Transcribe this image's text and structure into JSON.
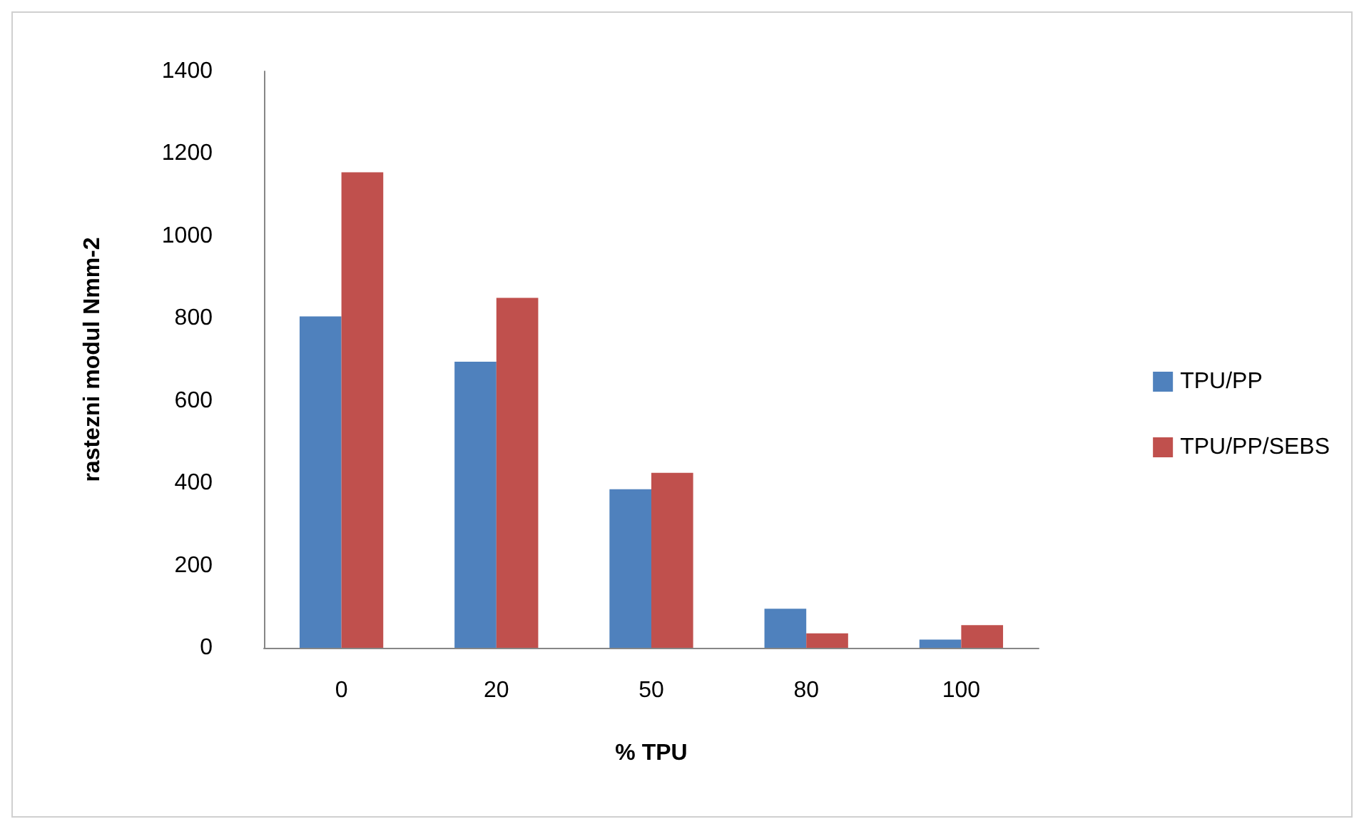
{
  "chart_data": {
    "type": "bar",
    "xlabel": "% TPU",
    "ylabel": "rastezni modul Nmm-2",
    "categories": [
      "0",
      "20",
      "50",
      "80",
      "100"
    ],
    "series": [
      {
        "name": "TPU/PP",
        "color": "#4f81bd",
        "values": [
          805,
          695,
          385,
          95,
          20
        ]
      },
      {
        "name": "TPU/PP/SEBS",
        "color": "#c0504d",
        "values": [
          1155,
          850,
          425,
          35,
          55
        ]
      }
    ],
    "ylim": [
      0,
      1400
    ],
    "yticks": [
      0,
      200,
      400,
      600,
      800,
      1000,
      1200,
      1400
    ],
    "grid": false,
    "legend": "right"
  }
}
